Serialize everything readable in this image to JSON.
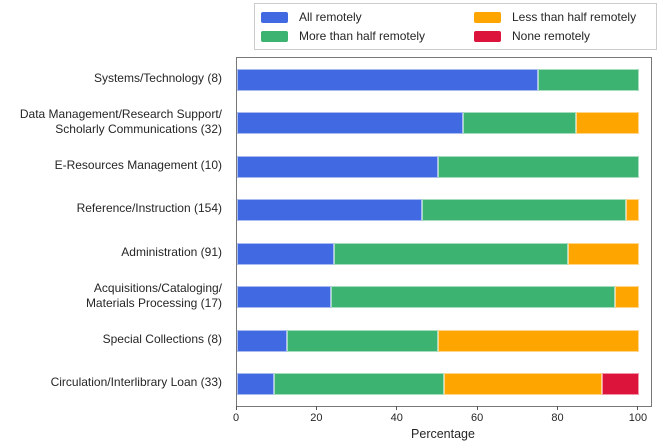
{
  "chart_data": {
    "type": "bar",
    "orientation": "horizontal",
    "stacked": true,
    "title": "",
    "xlabel": "Percentage",
    "xlim": [
      0,
      103
    ],
    "xticks": [
      0,
      20,
      40,
      60,
      80,
      100
    ],
    "grid": false,
    "legend_position": "top-outside, 2 columns",
    "categories": [
      "Systems/Technology (8)",
      "Data Management/Research Support/\nScholarly Communications (32)",
      "E-Resources Management (10)",
      "Reference/Instruction (154)",
      "Administration (91)",
      "Acquisitions/Cataloging/\nMaterials Processing (17)",
      "Special Collections (8)",
      "Circulation/Interlibrary Loan (33)"
    ],
    "series": [
      {
        "name": "All remotely",
        "color": "#4169E1",
        "values": [
          75,
          56.3,
          50,
          46.1,
          24.2,
          23.5,
          12.5,
          9.1
        ]
      },
      {
        "name": "More than half remotely",
        "color": "#3CB371",
        "values": [
          25,
          28.1,
          50,
          50.7,
          58.2,
          70.6,
          37.5,
          42.4
        ]
      },
      {
        "name": "Less than half remotely",
        "color": "#FFA500",
        "values": [
          0,
          15.6,
          0,
          3.2,
          17.6,
          5.9,
          50,
          39.4
        ]
      },
      {
        "name": "None remotely",
        "color": "#DC143C",
        "values": [
          0,
          0,
          0,
          0,
          0,
          0,
          0,
          9.1
        ]
      }
    ],
    "legend_display_order": [
      0,
      2,
      1,
      3
    ]
  }
}
